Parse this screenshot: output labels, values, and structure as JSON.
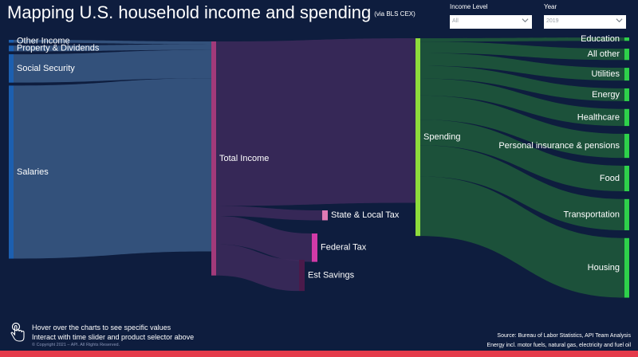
{
  "header": {
    "title": "Mapping U.S. household income and spending",
    "subtitle": "(via BLS CEX)"
  },
  "filters": [
    {
      "label": "Income Level",
      "value": "All"
    },
    {
      "label": "Year",
      "value": "2019"
    }
  ],
  "footer": {
    "hint_1": "Hover over the charts to see specific values",
    "hint_2": "Interact with time slider and product selector above",
    "copyright": "© Copyright 2021 – API. All Rights Reserved.",
    "source": "Source: Bureau of Labor Statistics, API Team Analysis",
    "note": "Energy incl. motor fuels, natural gas, electricity and fuel oil"
  },
  "colors": {
    "background": "#0e1d3e",
    "income_node": "#1c5fb0",
    "income_link": "#3a5a86",
    "total_node": "#a23a7a",
    "total_link": "#3d2a5c",
    "spending_node": "#8edc3c",
    "spending_link": "#1e5a3a",
    "category_node": "#2ed14a",
    "tax_state": "#e07ab4",
    "tax_federal": "#d23aa8",
    "savings": "#4a1a4a",
    "accent_bar": "#e43a4a"
  },
  "chart_data": {
    "type": "sankey",
    "title": "Mapping U.S. household income and spending",
    "nodes": [
      {
        "id": "other_income",
        "label": "Other Income",
        "column": 0
      },
      {
        "id": "property",
        "label": "Property & Dividends",
        "column": 0
      },
      {
        "id": "social_security",
        "label": "Social Security",
        "column": 0
      },
      {
        "id": "salaries",
        "label": "Salaries",
        "column": 0
      },
      {
        "id": "total_income",
        "label": "Total Income",
        "column": 1
      },
      {
        "id": "spending",
        "label": "Spending",
        "column": 2
      },
      {
        "id": "state_local_tax",
        "label": "State & Local Tax",
        "column": 2
      },
      {
        "id": "federal_tax",
        "label": "Federal Tax",
        "column": 2
      },
      {
        "id": "est_savings",
        "label": "Est Savings",
        "column": 2
      },
      {
        "id": "education",
        "label": "Education",
        "column": 3
      },
      {
        "id": "all_other",
        "label": "All other",
        "column": 3
      },
      {
        "id": "utilities",
        "label": "Utilities",
        "column": 3
      },
      {
        "id": "energy",
        "label": "Energy",
        "column": 3
      },
      {
        "id": "healthcare",
        "label": "Healthcare",
        "column": 3
      },
      {
        "id": "personal_insurance",
        "label": "Personal insurance & pensions",
        "column": 3
      },
      {
        "id": "food",
        "label": "Food",
        "column": 3
      },
      {
        "id": "transportation",
        "label": "Transportation",
        "column": 3
      },
      {
        "id": "housing",
        "label": "Housing",
        "column": 3
      }
    ],
    "links": [
      {
        "source": "other_income",
        "target": "total_income",
        "value": 1.0
      },
      {
        "source": "property",
        "target": "total_income",
        "value": 2.0
      },
      {
        "source": "social_security",
        "target": "total_income",
        "value": 10.0
      },
      {
        "source": "salaries",
        "target": "total_income",
        "value": 61.0
      },
      {
        "source": "total_income",
        "target": "spending",
        "value": 58.0
      },
      {
        "source": "total_income",
        "target": "state_local_tax",
        "value": 3.5
      },
      {
        "source": "total_income",
        "target": "federal_tax",
        "value": 10.0
      },
      {
        "source": "total_income",
        "target": "est_savings",
        "value": 11.0
      },
      {
        "source": "spending",
        "target": "education",
        "value": 1.2
      },
      {
        "source": "spending",
        "target": "all_other",
        "value": 4.0
      },
      {
        "source": "spending",
        "target": "utilities",
        "value": 4.5
      },
      {
        "source": "spending",
        "target": "energy",
        "value": 4.5
      },
      {
        "source": "spending",
        "target": "healthcare",
        "value": 6.0
      },
      {
        "source": "spending",
        "target": "personal_insurance",
        "value": 8.5
      },
      {
        "source": "spending",
        "target": "food",
        "value": 9.0
      },
      {
        "source": "spending",
        "target": "transportation",
        "value": 11.0
      },
      {
        "source": "spending",
        "target": "housing",
        "value": 21.0
      }
    ]
  }
}
